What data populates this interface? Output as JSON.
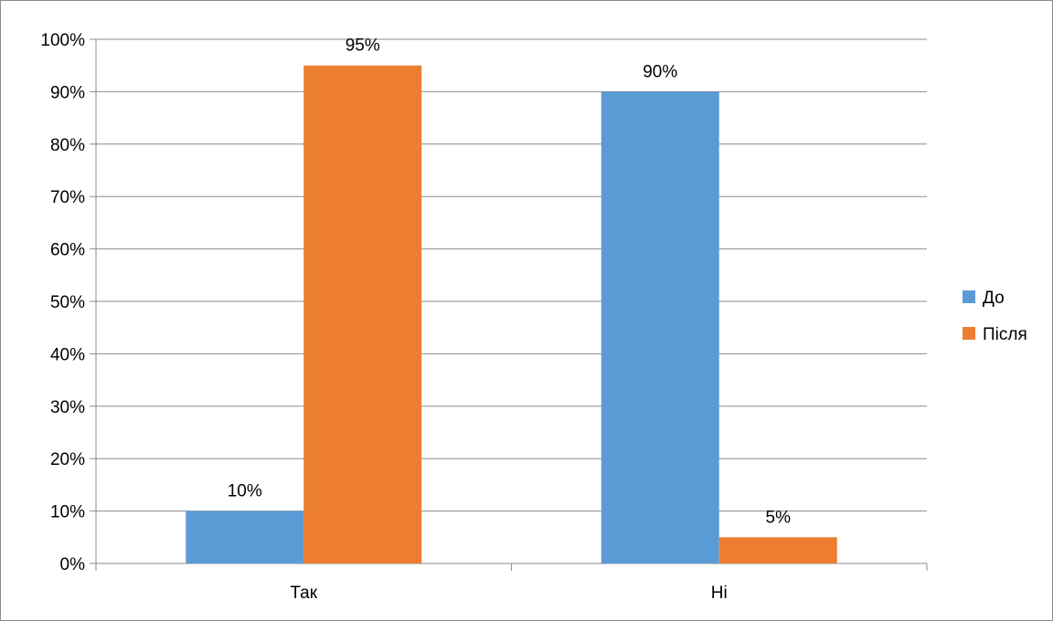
{
  "chart_data": {
    "type": "bar",
    "categories": [
      "Так",
      "Ні"
    ],
    "series": [
      {
        "name": "До",
        "values": [
          10,
          90
        ],
        "color": "#5b9bd5"
      },
      {
        "name": "Після",
        "values": [
          95,
          5
        ],
        "color": "#ed7d31"
      }
    ],
    "data_labels": [
      [
        "10%",
        "90%"
      ],
      [
        "95%",
        "5%"
      ]
    ],
    "y_ticks": [
      "0%",
      "10%",
      "20%",
      "30%",
      "40%",
      "50%",
      "60%",
      "70%",
      "80%",
      "90%",
      "100%"
    ],
    "ylim": [
      0,
      100
    ],
    "grid": true,
    "legend_position": "right",
    "title": "",
    "xlabel": "",
    "ylabel": ""
  }
}
